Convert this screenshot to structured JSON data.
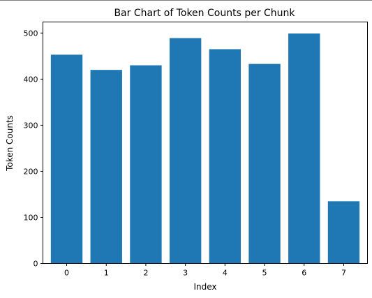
{
  "chart_data": {
    "type": "bar",
    "title": "Bar Chart of Token Counts per Chunk",
    "xlabel": "Index",
    "ylabel": "Token Counts",
    "categories": [
      "0",
      "1",
      "2",
      "3",
      "4",
      "5",
      "6",
      "7"
    ],
    "values": [
      453,
      420,
      430,
      489,
      465,
      433,
      499,
      135
    ],
    "ylim": [
      0,
      524
    ],
    "yticks": [
      0,
      100,
      200,
      300,
      400,
      500
    ],
    "grid": false,
    "legend": "none",
    "bar_color": "#1f77b4"
  }
}
